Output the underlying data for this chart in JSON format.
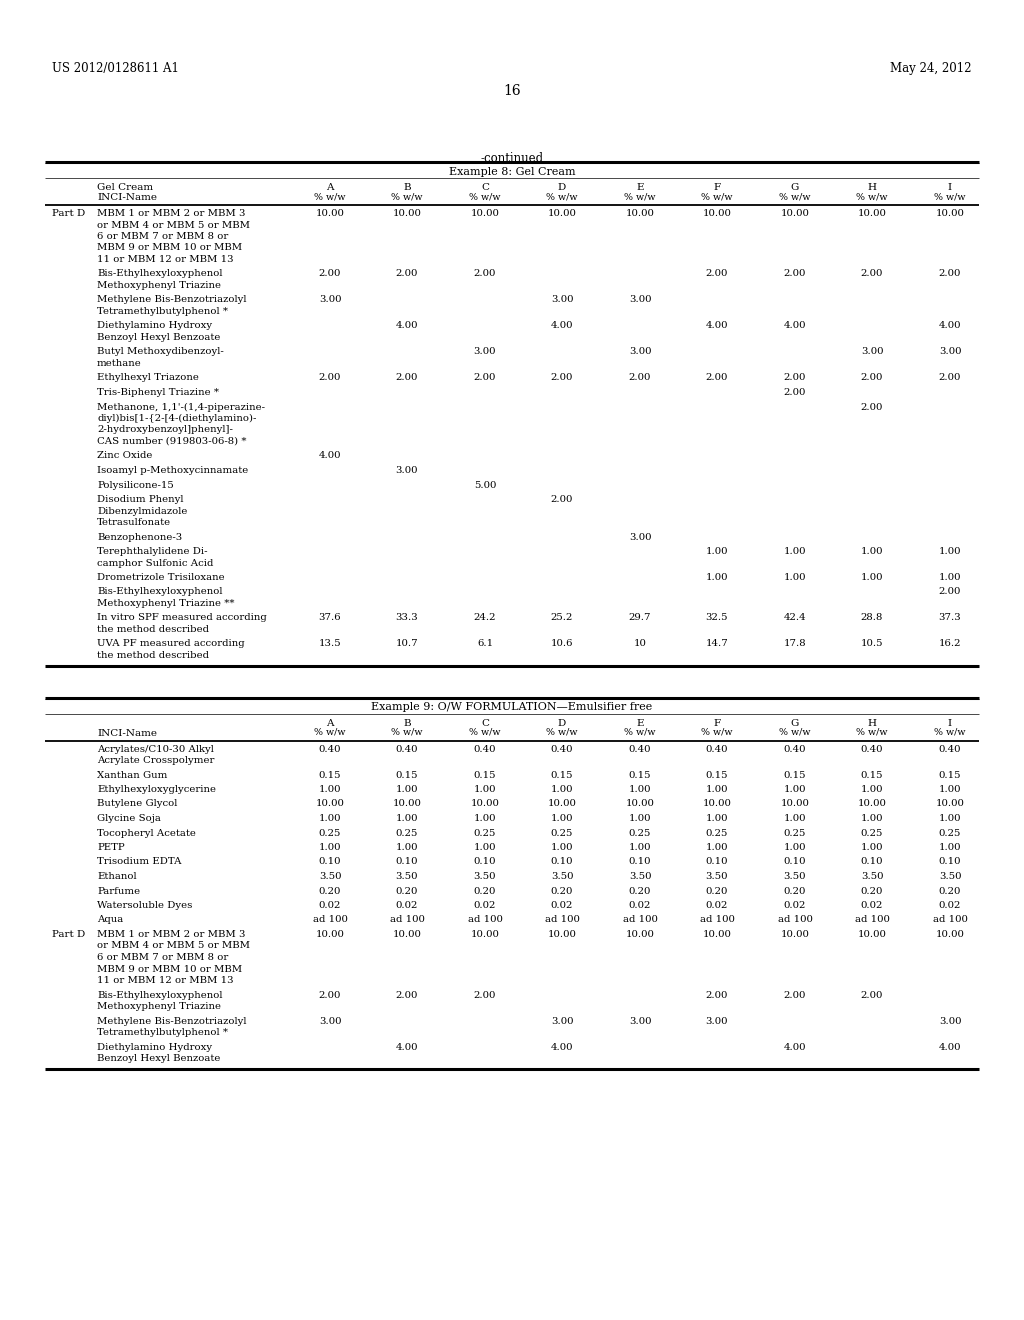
{
  "header_left": "US 2012/0128611 A1",
  "header_right": "May 24, 2012",
  "page_number": "16",
  "continued_label": "-continued",
  "table1_title": "Example 8: Gel Cream",
  "table1_col_header1": "Gel Cream",
  "table1_col_header2": "INCI-Name",
  "table2_title": "Example 9: O/W FORMULATION—Emulsifier free",
  "table2_col_header": "INCI-Name",
  "col_labels": [
    "A",
    "B",
    "C",
    "D",
    "E",
    "F",
    "G",
    "H",
    "I"
  ],
  "table1_rows": [
    {
      "label_prefix": "Part D",
      "label": [
        "MBM 1 or MBM 2 or MBM 3",
        "or MBM 4 or MBM 5 or MBM",
        "6 or MBM 7 or MBM 8 or",
        "MBM 9 or MBM 10 or MBM",
        "11 or MBM 12 or MBM 13"
      ],
      "values": [
        "10.00",
        "10.00",
        "10.00",
        "10.00",
        "10.00",
        "10.00",
        "10.00",
        "10.00",
        "10.00"
      ]
    },
    {
      "label_prefix": "",
      "label": [
        "Bis-Ethylhexyloxyphenol",
        "Methoxyphenyl Triazine"
      ],
      "values": [
        "2.00",
        "2.00",
        "2.00",
        "",
        "",
        "2.00",
        "2.00",
        "2.00",
        "2.00"
      ]
    },
    {
      "label_prefix": "",
      "label": [
        "Methylene Bis-Benzotriazolyl",
        "Tetramethylbutylphenol *"
      ],
      "values": [
        "3.00",
        "",
        "",
        "3.00",
        "3.00",
        "",
        "",
        "",
        ""
      ]
    },
    {
      "label_prefix": "",
      "label": [
        "Diethylamino Hydroxy",
        "Benzoyl Hexyl Benzoate"
      ],
      "values": [
        "",
        "4.00",
        "",
        "4.00",
        "",
        "4.00",
        "4.00",
        "",
        "4.00"
      ]
    },
    {
      "label_prefix": "",
      "label": [
        "Butyl Methoxydibenzoyl-",
        "methane"
      ],
      "values": [
        "",
        "",
        "3.00",
        "",
        "3.00",
        "",
        "",
        "3.00",
        "3.00"
      ]
    },
    {
      "label_prefix": "",
      "label": [
        "Ethylhexyl Triazone"
      ],
      "values": [
        "2.00",
        "2.00",
        "2.00",
        "2.00",
        "2.00",
        "2.00",
        "2.00",
        "2.00",
        "2.00"
      ]
    },
    {
      "label_prefix": "",
      "label": [
        "Tris-Biphenyl Triazine *"
      ],
      "values": [
        "",
        "",
        "",
        "",
        "",
        "",
        "2.00",
        "",
        ""
      ]
    },
    {
      "label_prefix": "",
      "label": [
        "Methanone, 1,1'-(1,4-piperazine-",
        "diyl)bis[1-{2-[4-(diethylamino)-",
        "2-hydroxybenzoyl]phenyl]-",
        "CAS number (919803-06-8) *"
      ],
      "values": [
        "",
        "",
        "",
        "",
        "",
        "",
        "",
        "2.00",
        ""
      ]
    },
    {
      "label_prefix": "",
      "label": [
        "Zinc Oxide"
      ],
      "values": [
        "4.00",
        "",
        "",
        "",
        "",
        "",
        "",
        "",
        ""
      ]
    },
    {
      "label_prefix": "",
      "label": [
        "Isoamyl p-Methoxycinnamate"
      ],
      "values": [
        "",
        "3.00",
        "",
        "",
        "",
        "",
        "",
        "",
        ""
      ]
    },
    {
      "label_prefix": "",
      "label": [
        "Polysilicone-15"
      ],
      "values": [
        "",
        "",
        "5.00",
        "",
        "",
        "",
        "",
        "",
        ""
      ]
    },
    {
      "label_prefix": "",
      "label": [
        "Disodium Phenyl",
        "Dibenzylmidazole",
        "Tetrasulfonate"
      ],
      "values": [
        "",
        "",
        "",
        "2.00",
        "",
        "",
        "",
        "",
        ""
      ]
    },
    {
      "label_prefix": "",
      "label": [
        "Benzophenone-3"
      ],
      "values": [
        "",
        "",
        "",
        "",
        "3.00",
        "",
        "",
        "",
        ""
      ]
    },
    {
      "label_prefix": "",
      "label": [
        "Terephthalylidene Di-",
        "camphor Sulfonic Acid"
      ],
      "values": [
        "",
        "",
        "",
        "",
        "",
        "1.00",
        "1.00",
        "1.00",
        "1.00"
      ]
    },
    {
      "label_prefix": "",
      "label": [
        "Drometrizole Trisiloxane"
      ],
      "values": [
        "",
        "",
        "",
        "",
        "",
        "1.00",
        "1.00",
        "1.00",
        "1.00"
      ]
    },
    {
      "label_prefix": "",
      "label": [
        "Bis-Ethylhexyloxyphenol",
        "Methoxyphenyl Triazine **"
      ],
      "values": [
        "",
        "",
        "",
        "",
        "",
        "",
        "",
        "",
        "2.00"
      ]
    },
    {
      "label_prefix": "",
      "label": [
        "In vitro SPF measured according",
        "the method described"
      ],
      "values": [
        "37.6",
        "33.3",
        "24.2",
        "25.2",
        "29.7",
        "32.5",
        "42.4",
        "28.8",
        "37.3"
      ]
    },
    {
      "label_prefix": "",
      "label": [
        "UVA PF measured according",
        "the method described"
      ],
      "values": [
        "13.5",
        "10.7",
        "6.1",
        "10.6",
        "10",
        "14.7",
        "17.8",
        "10.5",
        "16.2"
      ]
    }
  ],
  "table2_rows": [
    {
      "label_prefix": "",
      "label": [
        "Acrylates/C10-30 Alkyl",
        "Acrylate Crosspolymer"
      ],
      "values": [
        "0.40",
        "0.40",
        "0.40",
        "0.40",
        "0.40",
        "0.40",
        "0.40",
        "0.40",
        "0.40"
      ]
    },
    {
      "label_prefix": "",
      "label": [
        "Xanthan Gum"
      ],
      "values": [
        "0.15",
        "0.15",
        "0.15",
        "0.15",
        "0.15",
        "0.15",
        "0.15",
        "0.15",
        "0.15"
      ]
    },
    {
      "label_prefix": "",
      "label": [
        "Ethylhexyloxyglycerine"
      ],
      "values": [
        "1.00",
        "1.00",
        "1.00",
        "1.00",
        "1.00",
        "1.00",
        "1.00",
        "1.00",
        "1.00"
      ]
    },
    {
      "label_prefix": "",
      "label": [
        "Butylene Glycol"
      ],
      "values": [
        "10.00",
        "10.00",
        "10.00",
        "10.00",
        "10.00",
        "10.00",
        "10.00",
        "10.00",
        "10.00"
      ]
    },
    {
      "label_prefix": "",
      "label": [
        "Glycine Soja"
      ],
      "values": [
        "1.00",
        "1.00",
        "1.00",
        "1.00",
        "1.00",
        "1.00",
        "1.00",
        "1.00",
        "1.00"
      ]
    },
    {
      "label_prefix": "",
      "label": [
        "Tocopheryl Acetate"
      ],
      "values": [
        "0.25",
        "0.25",
        "0.25",
        "0.25",
        "0.25",
        "0.25",
        "0.25",
        "0.25",
        "0.25"
      ]
    },
    {
      "label_prefix": "",
      "label": [
        "PETP"
      ],
      "values": [
        "1.00",
        "1.00",
        "1.00",
        "1.00",
        "1.00",
        "1.00",
        "1.00",
        "1.00",
        "1.00"
      ]
    },
    {
      "label_prefix": "",
      "label": [
        "Trisodium EDTA"
      ],
      "values": [
        "0.10",
        "0.10",
        "0.10",
        "0.10",
        "0.10",
        "0.10",
        "0.10",
        "0.10",
        "0.10"
      ]
    },
    {
      "label_prefix": "",
      "label": [
        "Ethanol"
      ],
      "values": [
        "3.50",
        "3.50",
        "3.50",
        "3.50",
        "3.50",
        "3.50",
        "3.50",
        "3.50",
        "3.50"
      ]
    },
    {
      "label_prefix": "",
      "label": [
        "Parfume"
      ],
      "values": [
        "0.20",
        "0.20",
        "0.20",
        "0.20",
        "0.20",
        "0.20",
        "0.20",
        "0.20",
        "0.20"
      ]
    },
    {
      "label_prefix": "",
      "label": [
        "Watersoluble Dyes"
      ],
      "values": [
        "0.02",
        "0.02",
        "0.02",
        "0.02",
        "0.02",
        "0.02",
        "0.02",
        "0.02",
        "0.02"
      ]
    },
    {
      "label_prefix": "",
      "label": [
        "Aqua"
      ],
      "values": [
        "ad 100",
        "ad 100",
        "ad 100",
        "ad 100",
        "ad 100",
        "ad 100",
        "ad 100",
        "ad 100",
        "ad 100"
      ]
    },
    {
      "label_prefix": "Part D",
      "label": [
        "MBM 1 or MBM 2 or MBM 3",
        "or MBM 4 or MBM 5 or MBM",
        "6 or MBM 7 or MBM 8 or",
        "MBM 9 or MBM 10 or MBM",
        "11 or MBM 12 or MBM 13"
      ],
      "values": [
        "10.00",
        "10.00",
        "10.00",
        "10.00",
        "10.00",
        "10.00",
        "10.00",
        "10.00",
        "10.00"
      ]
    },
    {
      "label_prefix": "",
      "label": [
        "Bis-Ethylhexyloxyphenol",
        "Methoxyphenyl Triazine"
      ],
      "values": [
        "2.00",
        "2.00",
        "2.00",
        "",
        "",
        "2.00",
        "2.00",
        "2.00",
        ""
      ]
    },
    {
      "label_prefix": "",
      "label": [
        "Methylene Bis-Benzotriazolyl",
        "Tetramethylbutylphenol *"
      ],
      "values": [
        "3.00",
        "",
        "",
        "3.00",
        "3.00",
        "3.00",
        "",
        "",
        "3.00"
      ]
    },
    {
      "label_prefix": "",
      "label": [
        "Diethylamino Hydroxy",
        "Benzoyl Hexyl Benzoate"
      ],
      "values": [
        "",
        "4.00",
        "",
        "4.00",
        "",
        "",
        "4.00",
        "",
        "4.00"
      ]
    }
  ],
  "bg_color": "#ffffff",
  "text_color": "#000000"
}
